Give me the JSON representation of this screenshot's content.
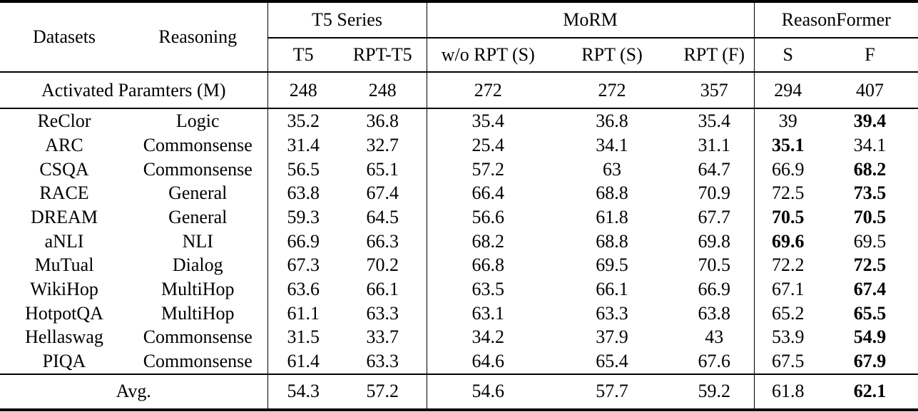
{
  "colors": {
    "text": "#000000",
    "background": "#ffffff",
    "rule": "#000000"
  },
  "table": {
    "header": {
      "datasets": "Datasets",
      "reasoning": "Reasoning",
      "subcols": [
        "T5",
        "RPT-T5",
        "w/o RPT (S)",
        "RPT (S)",
        "RPT (F)",
        "S",
        "F"
      ]
    },
    "col_groups": [
      {
        "label": "T5 Series",
        "span": 2
      },
      {
        "label": "MoRM",
        "span": 3
      },
      {
        "label": "ReasonFormer",
        "span": 2
      }
    ],
    "params_row": {
      "label": "Activated Paramters (M)",
      "values": [
        "248",
        "248",
        "272",
        "272",
        "357",
        "294",
        "407"
      ]
    },
    "rows": [
      {
        "dataset": "ReClor",
        "reasoning": "Logic",
        "values": [
          "35.2",
          "36.8",
          "35.4",
          "36.8",
          "35.4",
          "39",
          "39.4"
        ],
        "bold": [
          6
        ]
      },
      {
        "dataset": "ARC",
        "reasoning": "Commonsense",
        "values": [
          "31.4",
          "32.7",
          "25.4",
          "34.1",
          "31.1",
          "35.1",
          "34.1"
        ],
        "bold": [
          5
        ]
      },
      {
        "dataset": "CSQA",
        "reasoning": "Commonsense",
        "values": [
          "56.5",
          "65.1",
          "57.2",
          "63",
          "64.7",
          "66.9",
          "68.2"
        ],
        "bold": [
          6
        ]
      },
      {
        "dataset": "RACE",
        "reasoning": "General",
        "values": [
          "63.8",
          "67.4",
          "66.4",
          "68.8",
          "70.9",
          "72.5",
          "73.5"
        ],
        "bold": [
          6
        ]
      },
      {
        "dataset": "DREAM",
        "reasoning": "General",
        "values": [
          "59.3",
          "64.5",
          "56.6",
          "61.8",
          "67.7",
          "70.5",
          "70.5"
        ],
        "bold": [
          5,
          6
        ]
      },
      {
        "dataset": "aNLI",
        "reasoning": "NLI",
        "values": [
          "66.9",
          "66.3",
          "68.2",
          "68.8",
          "69.8",
          "69.6",
          "69.5"
        ],
        "bold": [
          5
        ]
      },
      {
        "dataset": "MuTual",
        "reasoning": "Dialog",
        "values": [
          "67.3",
          "70.2",
          "66.8",
          "69.5",
          "70.5",
          "72.2",
          "72.5"
        ],
        "bold": [
          6
        ]
      },
      {
        "dataset": "WikiHop",
        "reasoning": "MultiHop",
        "values": [
          "63.6",
          "66.1",
          "63.5",
          "66.1",
          "66.9",
          "67.1",
          "67.4"
        ],
        "bold": [
          6
        ]
      },
      {
        "dataset": "HotpotQA",
        "reasoning": "MultiHop",
        "values": [
          "61.1",
          "63.3",
          "63.1",
          "63.3",
          "63.8",
          "65.2",
          "65.5"
        ],
        "bold": [
          6
        ]
      },
      {
        "dataset": "Hellaswag",
        "reasoning": "Commonsense",
        "values": [
          "31.5",
          "33.7",
          "34.2",
          "37.9",
          "43",
          "53.9",
          "54.9"
        ],
        "bold": [
          6
        ]
      },
      {
        "dataset": "PIQA",
        "reasoning": "Commonsense",
        "values": [
          "61.4",
          "63.3",
          "64.6",
          "65.4",
          "67.6",
          "67.5",
          "67.9"
        ],
        "bold": [
          6
        ]
      }
    ],
    "avg_row": {
      "label": "Avg.",
      "values": [
        "54.3",
        "57.2",
        "54.6",
        "57.7",
        "59.2",
        "61.8",
        "62.1"
      ],
      "bold": [
        6
      ]
    }
  }
}
